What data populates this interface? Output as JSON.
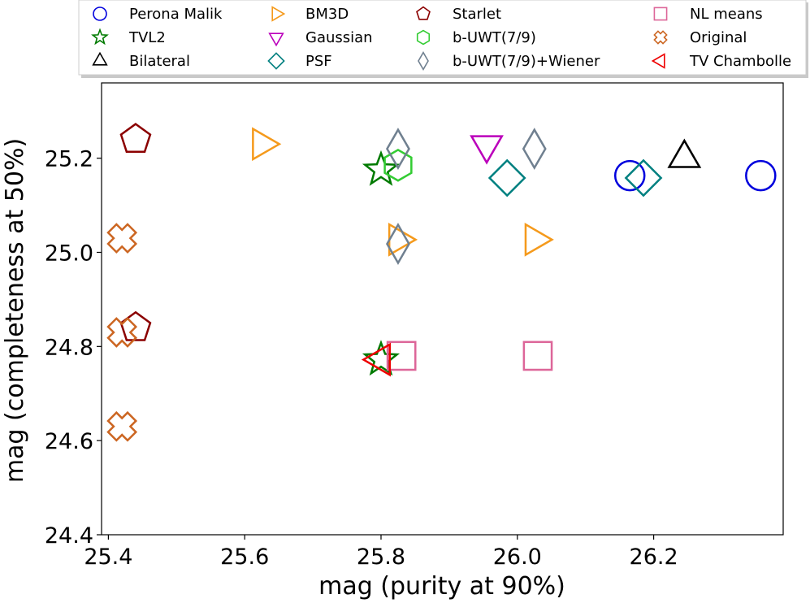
{
  "chart_data": {
    "type": "scatter",
    "xlabel": "mag (purity at 90%)",
    "ylabel": "mag (completeness at 50%)",
    "xlim": [
      25.39,
      26.39
    ],
    "ylim": [
      24.4,
      25.36
    ],
    "xticks": [
      25.4,
      25.6,
      25.8,
      26.0,
      26.2
    ],
    "yticks": [
      24.4,
      24.6,
      24.8,
      25.0,
      25.2
    ],
    "xtick_labels": [
      "25.4",
      "25.6",
      "25.8",
      "26.0",
      "26.2"
    ],
    "ytick_labels": [
      "24.4",
      "24.6",
      "24.8",
      "25.0",
      "25.2"
    ],
    "grid": false,
    "legend_position": "top",
    "series": [
      {
        "name": "Perona Malik",
        "marker": "circle",
        "color": "#0000dd",
        "x": [
          26.165,
          26.357
        ],
        "y": [
          25.163,
          25.163
        ]
      },
      {
        "name": "TVL2",
        "marker": "star",
        "color": "#007a00",
        "x": [
          25.8,
          25.8
        ],
        "y": [
          25.175,
          24.772
        ]
      },
      {
        "name": "Bilateral",
        "marker": "triangle-up",
        "color": "#000000",
        "x": [
          26.245
        ],
        "y": [
          25.2
        ]
      },
      {
        "name": "BM3D",
        "marker": "triangle-right",
        "color": "#f59a1c",
        "x": [
          25.625,
          25.825,
          26.025
        ],
        "y": [
          25.23,
          25.027,
          25.027
        ]
      },
      {
        "name": "Gaussian",
        "marker": "triangle-down",
        "color": "#bb00bb",
        "x": [
          25.955
        ],
        "y": [
          25.228
        ]
      },
      {
        "name": "PSF",
        "marker": "diamond",
        "color": "#008080",
        "x": [
          25.985,
          26.185
        ],
        "y": [
          25.158,
          25.158
        ]
      },
      {
        "name": "Starlet",
        "marker": "pentagon",
        "color": "#8b0000",
        "x": [
          25.44,
          25.44
        ],
        "y": [
          25.24,
          24.84
        ]
      },
      {
        "name": "b-UWT(7/9)",
        "marker": "hexagon",
        "color": "#33cc33",
        "x": [
          25.825
        ],
        "y": [
          25.185
        ]
      },
      {
        "name": "b-UWT(7/9)+Wiener",
        "marker": "thin-diamond",
        "color": "#708090",
        "x": [
          25.825,
          26.025,
          25.825
        ],
        "y": [
          25.22,
          25.22,
          25.018
        ]
      },
      {
        "name": "NL means",
        "marker": "square",
        "color": "#dd6699",
        "x": [
          25.83,
          26.03
        ],
        "y": [
          24.78,
          24.78
        ]
      },
      {
        "name": "Original",
        "marker": "x-cross",
        "color": "#cc6622",
        "x": [
          25.42,
          25.42,
          25.42
        ],
        "y": [
          25.03,
          24.83,
          24.63
        ]
      },
      {
        "name": "TV Chambolle",
        "marker": "triangle-left",
        "color": "#ee0000",
        "x": [
          25.8
        ],
        "y": [
          24.772
        ]
      }
    ]
  }
}
